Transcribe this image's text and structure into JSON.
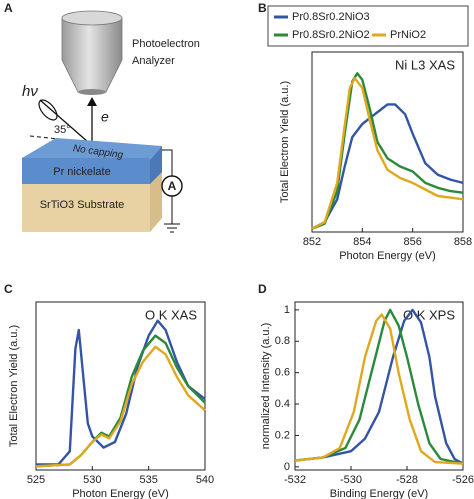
{
  "panel_labels": [
    "A",
    "B",
    "C",
    "D"
  ],
  "schematic": {
    "analyzer": [
      "Photoelectron",
      "Analyzer"
    ],
    "photon": "hν",
    "electron": "e",
    "angle": "35°",
    "layers": [
      "No capping",
      "Pr nickelate",
      "SrTiO3 Substrate"
    ],
    "meter": "A"
  },
  "chart_data": [
    {
      "type": "line",
      "xlabel": "Photon Energy (eV)",
      "ylabel": "Total Electron Yield (a.u.)",
      "annotation": "Ni L3 XAS",
      "xlim": [
        852,
        858
      ],
      "xticks": [
        852,
        854,
        856,
        858
      ],
      "ylim": [
        0,
        1.1
      ],
      "legend": "top",
      "series": [
        {
          "name": "Pr0.8Sr0.2NiO3",
          "color": "#3454a6",
          "x": [
            852,
            852.5,
            853,
            853.3,
            853.6,
            854,
            854.5,
            855,
            855.3,
            855.7,
            856,
            856.5,
            857,
            857.5,
            858
          ],
          "values": [
            0.02,
            0.06,
            0.2,
            0.4,
            0.58,
            0.66,
            0.72,
            0.78,
            0.78,
            0.72,
            0.6,
            0.42,
            0.35,
            0.32,
            0.3
          ]
        },
        {
          "name": "Pr0.8Sr0.2NiO2",
          "color": "#2a8a3a",
          "x": [
            852,
            852.5,
            853,
            853.3,
            853.6,
            853.8,
            854,
            854.3,
            854.6,
            855,
            855.5,
            856,
            856.5,
            857,
            857.5,
            858
          ],
          "values": [
            0.02,
            0.05,
            0.25,
            0.6,
            0.92,
            0.97,
            0.93,
            0.75,
            0.55,
            0.45,
            0.4,
            0.37,
            0.3,
            0.27,
            0.25,
            0.24
          ]
        },
        {
          "name": "PrNiO2",
          "color": "#e0a820",
          "x": [
            852,
            852.5,
            853,
            853.3,
            853.5,
            853.7,
            854,
            854.3,
            854.6,
            855,
            855.5,
            856,
            856.5,
            857,
            857.5,
            858
          ],
          "values": [
            0.02,
            0.06,
            0.3,
            0.65,
            0.88,
            0.94,
            0.88,
            0.68,
            0.5,
            0.38,
            0.33,
            0.3,
            0.26,
            0.22,
            0.21,
            0.2
          ]
        }
      ]
    },
    {
      "type": "line",
      "xlabel": "Photon Energy (eV)",
      "ylabel": "Total Electron Yield (a.u.)",
      "annotation": "O K XAS",
      "xlim": [
        525,
        540
      ],
      "xticks": [
        525,
        530,
        535,
        540
      ],
      "ylim": [
        0,
        0.9
      ],
      "series": [
        {
          "color": "#3454a6",
          "x": [
            525,
            527,
            528,
            528.5,
            528.8,
            529.2,
            529.6,
            530,
            531,
            532,
            533,
            534,
            535,
            535.8,
            536.5,
            537.5,
            538.5,
            540
          ],
          "values": [
            0.03,
            0.03,
            0.1,
            0.65,
            0.75,
            0.5,
            0.25,
            0.18,
            0.12,
            0.15,
            0.3,
            0.55,
            0.72,
            0.8,
            0.75,
            0.58,
            0.45,
            0.38
          ]
        },
        {
          "color": "#2a8a3a",
          "x": [
            525,
            528,
            529,
            530,
            530.8,
            531.5,
            532.5,
            533.5,
            534.5,
            535.6,
            536.5,
            537.5,
            538.5,
            540
          ],
          "values": [
            0.02,
            0.03,
            0.08,
            0.15,
            0.2,
            0.18,
            0.28,
            0.5,
            0.64,
            0.72,
            0.68,
            0.55,
            0.45,
            0.36
          ]
        },
        {
          "color": "#e0a820",
          "x": [
            525,
            528,
            529,
            530,
            530.8,
            531.5,
            532.5,
            533.5,
            534.5,
            535.6,
            536.5,
            537.5,
            538.5,
            540
          ],
          "values": [
            0.02,
            0.03,
            0.08,
            0.15,
            0.19,
            0.17,
            0.26,
            0.46,
            0.58,
            0.66,
            0.62,
            0.5,
            0.4,
            0.32
          ]
        }
      ]
    },
    {
      "type": "line",
      "xlabel": "Binding Energy (eV)",
      "ylabel": "normalized Intensity (a.u.)",
      "annotation": "O K XPS",
      "xlim": [
        -532,
        -526
      ],
      "xticks": [
        -532,
        -530,
        -528,
        -526
      ],
      "ylim": [
        -0.02,
        1.05
      ],
      "yticks": [
        0,
        0.2,
        0.4,
        0.6,
        0.8,
        1
      ],
      "series": [
        {
          "color": "#3454a6",
          "x": [
            -532,
            -531,
            -530,
            -529.5,
            -529,
            -528.5,
            -528.1,
            -527.8,
            -527.5,
            -527.2,
            -527,
            -526.6,
            -526.3,
            -526
          ],
          "values": [
            0.04,
            0.06,
            0.1,
            0.18,
            0.35,
            0.7,
            0.93,
            1.0,
            0.92,
            0.7,
            0.45,
            0.15,
            0.05,
            0.02
          ]
        },
        {
          "color": "#2a8a3a",
          "x": [
            -532,
            -531,
            -530.2,
            -529.7,
            -529.2,
            -528.8,
            -528.6,
            -528.3,
            -528,
            -527.6,
            -527.2,
            -526.8,
            -526
          ],
          "values": [
            0.04,
            0.06,
            0.12,
            0.3,
            0.65,
            0.93,
            1.0,
            0.9,
            0.7,
            0.4,
            0.15,
            0.05,
            0.02
          ]
        },
        {
          "color": "#e0a820",
          "x": [
            -532,
            -531,
            -530.4,
            -529.9,
            -529.5,
            -529.1,
            -528.9,
            -528.6,
            -528.3,
            -527.9,
            -527.5,
            -527,
            -526
          ],
          "values": [
            0.04,
            0.06,
            0.12,
            0.35,
            0.7,
            0.93,
            0.97,
            0.88,
            0.6,
            0.3,
            0.1,
            0.03,
            0.02
          ]
        }
      ]
    }
  ]
}
